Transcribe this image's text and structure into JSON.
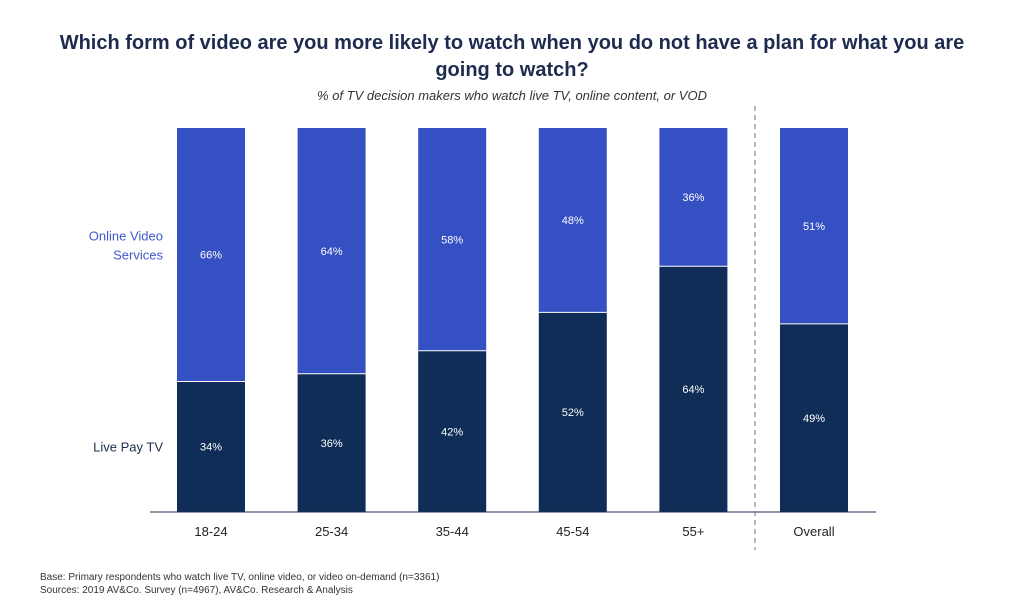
{
  "title": "Which form of video are you more likely to watch when you do not have a plan for what you are going to watch?",
  "subtitle": "% of TV decision makers who watch live TV, online content, or VOD",
  "footnotes": {
    "base": "Base: Primary respondents who watch live TV, online video, or video on-demand (n=3361)",
    "sources": "Sources: 2019 AV&Co. Survey (n=4967), AV&Co. Research & Analysis"
  },
  "colors": {
    "online": "#3450c2",
    "live": "#0f2d57",
    "online_label": "#3f5bc8",
    "live_label": "#1d2b4f",
    "divider": "#888888",
    "axis": "#1d2b4f"
  },
  "chart_data": {
    "type": "bar",
    "stacked": true,
    "title": "Which form of video are you more likely to watch when you do not have a plan for what you are going to watch?",
    "subtitle": "% of TV decision makers who watch live TV, online content, or VOD",
    "categories": [
      "18-24",
      "25-34",
      "35-44",
      "45-54",
      "55+",
      "Overall"
    ],
    "series": [
      {
        "name": "Live Pay TV",
        "values": [
          34,
          36,
          42,
          52,
          64,
          49
        ]
      },
      {
        "name": "Online Video Services",
        "values": [
          66,
          64,
          58,
          48,
          36,
          51
        ]
      }
    ],
    "value_labels": {
      "Live Pay TV": [
        "34%",
        "36%",
        "42%",
        "52%",
        "64%",
        "49%"
      ],
      "Online Video Services": [
        "66%",
        "64%",
        "58%",
        "48%",
        "36%",
        "51%"
      ]
    },
    "legend_labels": {
      "online": [
        "Online Video",
        "Services"
      ],
      "live": "Live Pay TV"
    },
    "ylim": [
      0,
      100
    ],
    "xlabel": "",
    "ylabel": "",
    "divider_before": "Overall"
  }
}
